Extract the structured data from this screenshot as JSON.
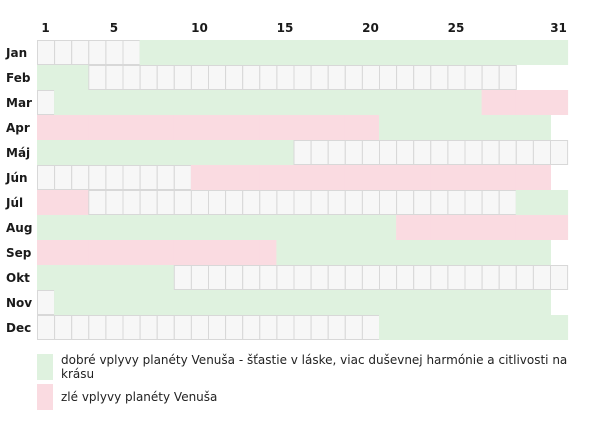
{
  "chart_data": {
    "type": "heatmap",
    "title": "",
    "day_ticks": [
      "1",
      "5",
      "10",
      "15",
      "20",
      "25",
      "31"
    ],
    "days_in_month": [
      31,
      28,
      31,
      30,
      31,
      30,
      31,
      31,
      30,
      31,
      30,
      31
    ],
    "months": [
      {
        "label": "Jan",
        "good": [
          [
            7,
            31
          ]
        ],
        "bad": []
      },
      {
        "label": "Feb",
        "good": [
          [
            1,
            3
          ]
        ],
        "bad": []
      },
      {
        "label": "Mar",
        "good": [
          [
            2,
            26
          ]
        ],
        "bad": [
          [
            27,
            31
          ]
        ]
      },
      {
        "label": "Apr",
        "good": [
          [
            21,
            30
          ]
        ],
        "bad": [
          [
            1,
            20
          ]
        ]
      },
      {
        "label": "Máj",
        "good": [
          [
            1,
            15
          ]
        ],
        "bad": []
      },
      {
        "label": "Jún",
        "good": [],
        "bad": [
          [
            10,
            30
          ]
        ]
      },
      {
        "label": "Júl",
        "good": [
          [
            29,
            31
          ]
        ],
        "bad": [
          [
            1,
            3
          ]
        ]
      },
      {
        "label": "Aug",
        "good": [
          [
            1,
            21
          ]
        ],
        "bad": [
          [
            22,
            31
          ]
        ]
      },
      {
        "label": "Sep",
        "good": [
          [
            15,
            30
          ]
        ],
        "bad": [
          [
            1,
            14
          ]
        ]
      },
      {
        "label": "Okt",
        "good": [
          [
            1,
            8
          ]
        ],
        "bad": []
      },
      {
        "label": "Nov",
        "good": [
          [
            2,
            30
          ]
        ],
        "bad": []
      },
      {
        "label": "Dec",
        "good": [
          [
            21,
            31
          ]
        ],
        "bad": []
      }
    ],
    "colors": {
      "good": "#dff2df",
      "bad": "#fadbe1",
      "neutral": "#f7f7f7",
      "grid": "#d8d8d8"
    },
    "legend": [
      {
        "key": "good",
        "label": "dobré vplyvy planéty Venuša - šťastie v láske, viac duševnej harmónie a citlivosti na krásu"
      },
      {
        "key": "bad",
        "label": "zlé vplyvy planéty Venuša"
      }
    ]
  }
}
